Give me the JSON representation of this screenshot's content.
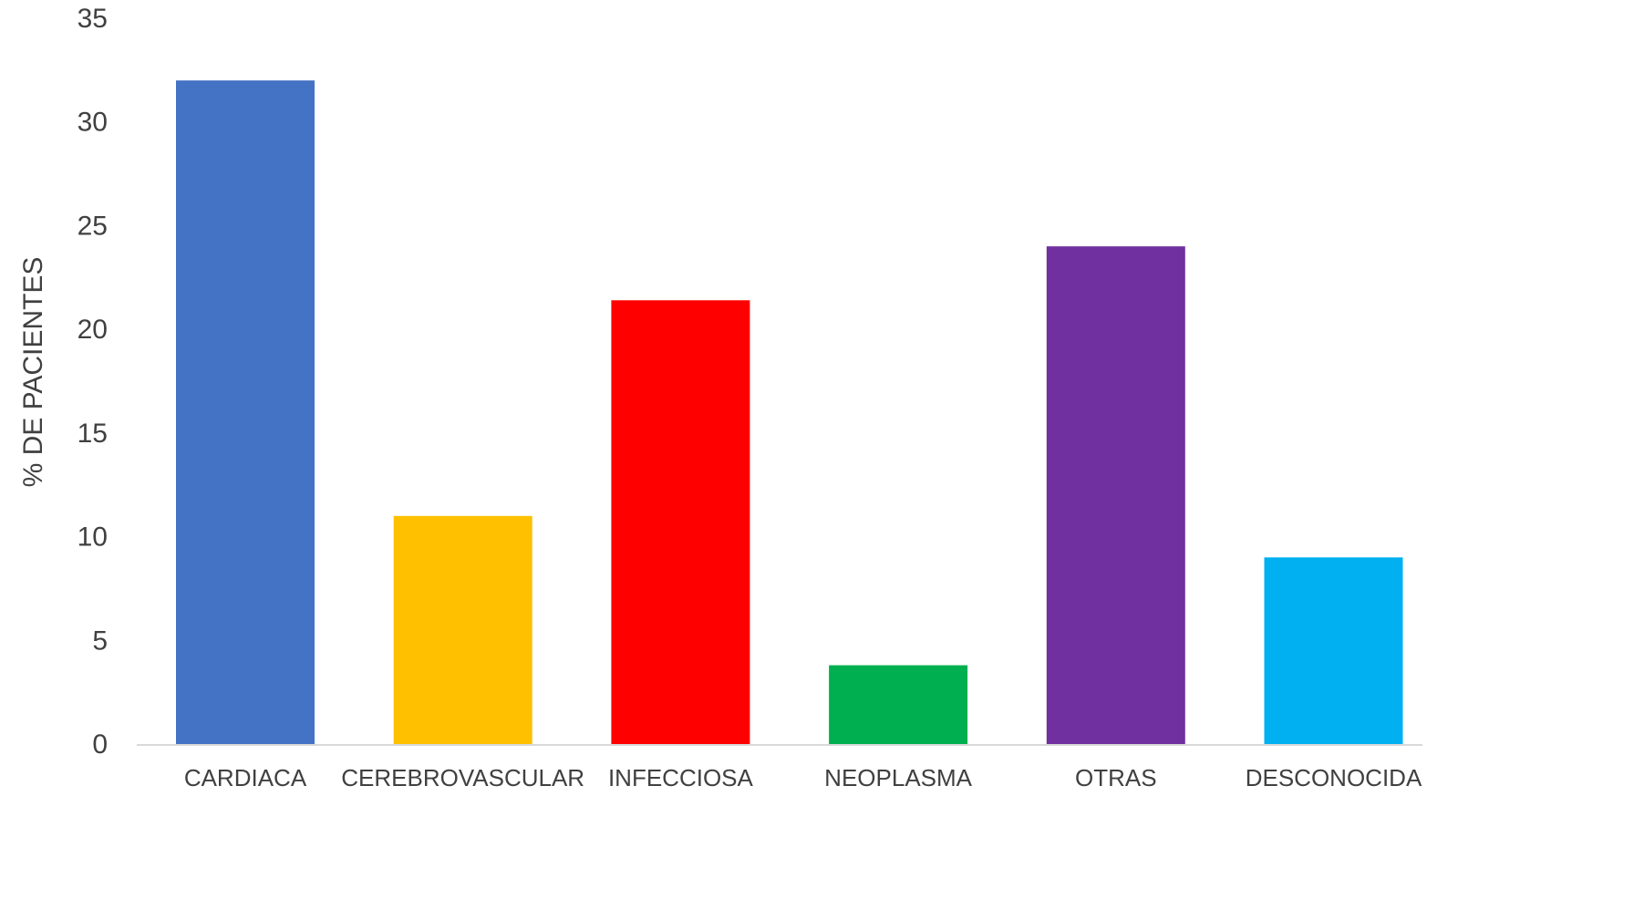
{
  "chart_data": {
    "type": "bar",
    "title": "",
    "xlabel": "",
    "ylabel": "% DE PACIENTES",
    "ylim": [
      0,
      35
    ],
    "yticks": [
      0,
      5,
      10,
      15,
      20,
      25,
      30,
      35
    ],
    "grid": false,
    "legend": "none",
    "categories": [
      "CARDIACA",
      "CEREBROVASCULAR",
      "INFECCIOSA",
      "NEOPLASMA",
      "OTRAS",
      "DESCONOCIDA"
    ],
    "values": [
      32,
      11,
      21.4,
      3.8,
      24,
      9
    ],
    "colors": [
      "#4472C4",
      "#FFC000",
      "#FF0000",
      "#00B050",
      "#7030A0",
      "#00B0F0"
    ]
  }
}
